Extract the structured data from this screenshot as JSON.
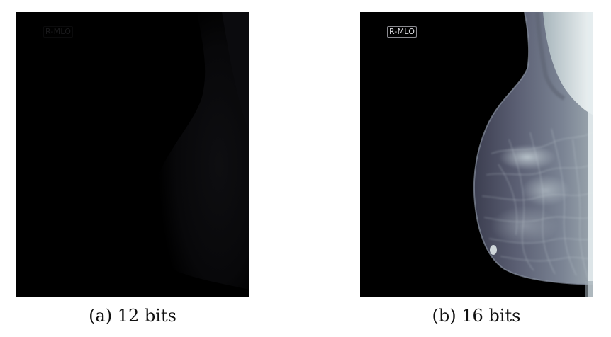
{
  "figures": [
    {
      "id": "a",
      "caption": "(a) 12 bits",
      "view_label": "R-MLO",
      "bit_depth": 12
    },
    {
      "id": "b",
      "caption": "(b) 16 bits",
      "view_label": "R-MLO",
      "bit_depth": 16
    }
  ],
  "colors": {
    "panel_background": "#000000",
    "tissue_bright": "#dfe6ea",
    "tissue_dim": "#0a0a0c"
  }
}
